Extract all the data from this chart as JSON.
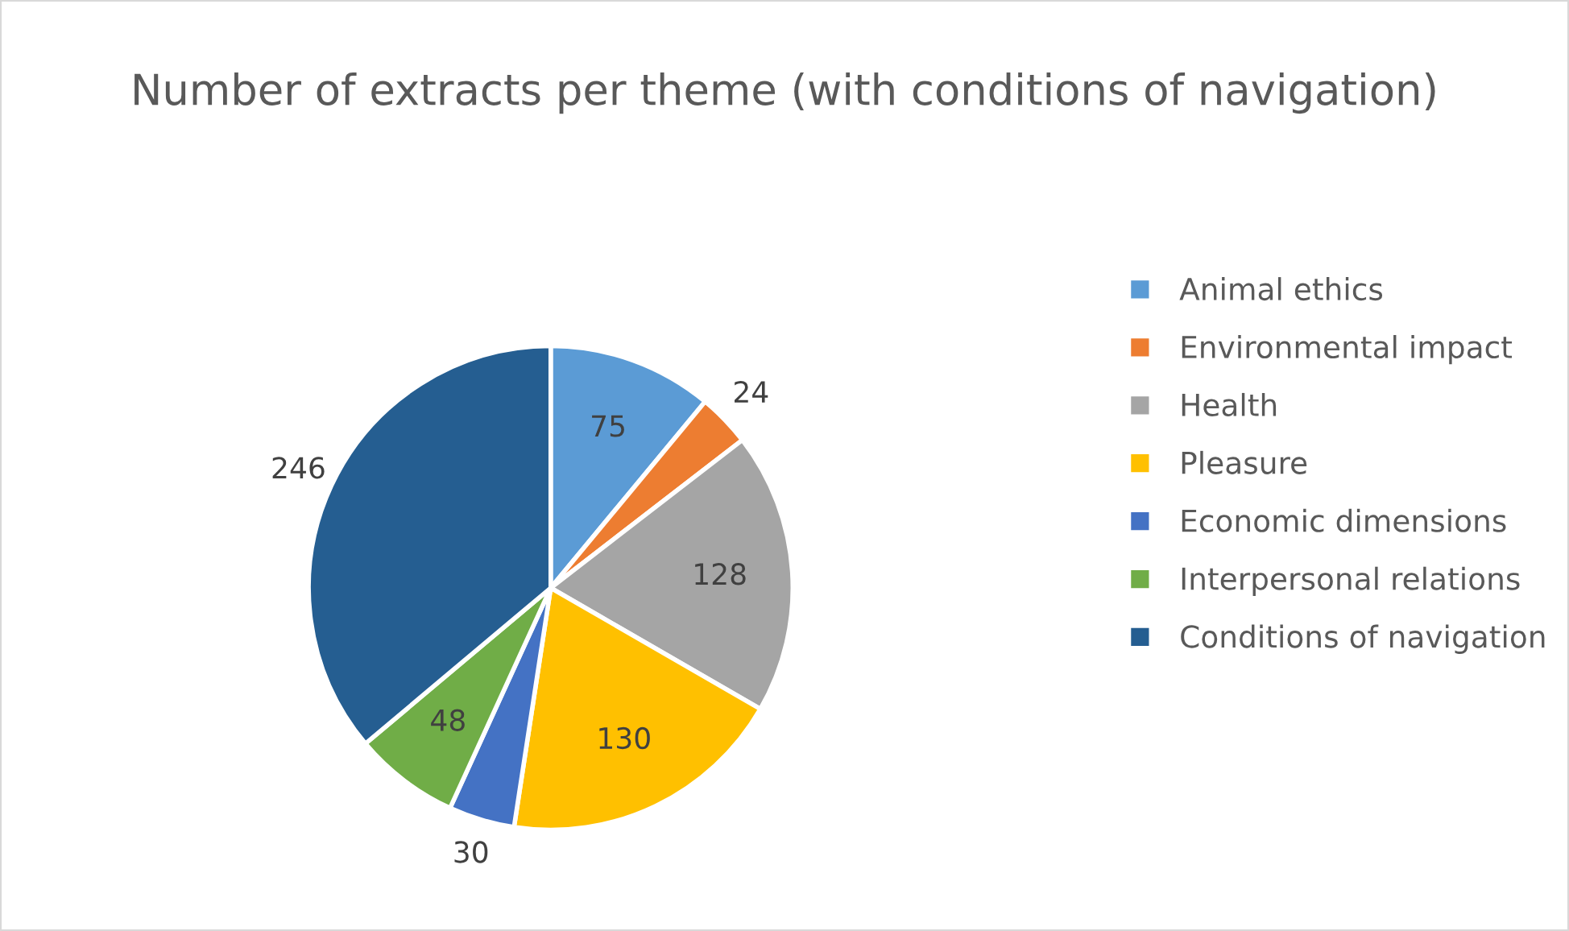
{
  "chart_data": {
    "type": "pie",
    "title": "Number of extracts per theme (with conditions of navigation)",
    "categories": [
      "Animal ethics",
      "Environmental impact",
      "Health",
      "Pleasure",
      "Economic dimensions",
      "Interpersonal relations",
      "Conditions of navigation"
    ],
    "values": [
      75,
      24,
      128,
      130,
      30,
      48,
      246
    ],
    "colors": [
      "#5b9bd5",
      "#ed7d31",
      "#a5a5a5",
      "#ffc000",
      "#4472c4",
      "#70ad47",
      "#255e91"
    ],
    "data_labels": true,
    "legend": "right"
  }
}
